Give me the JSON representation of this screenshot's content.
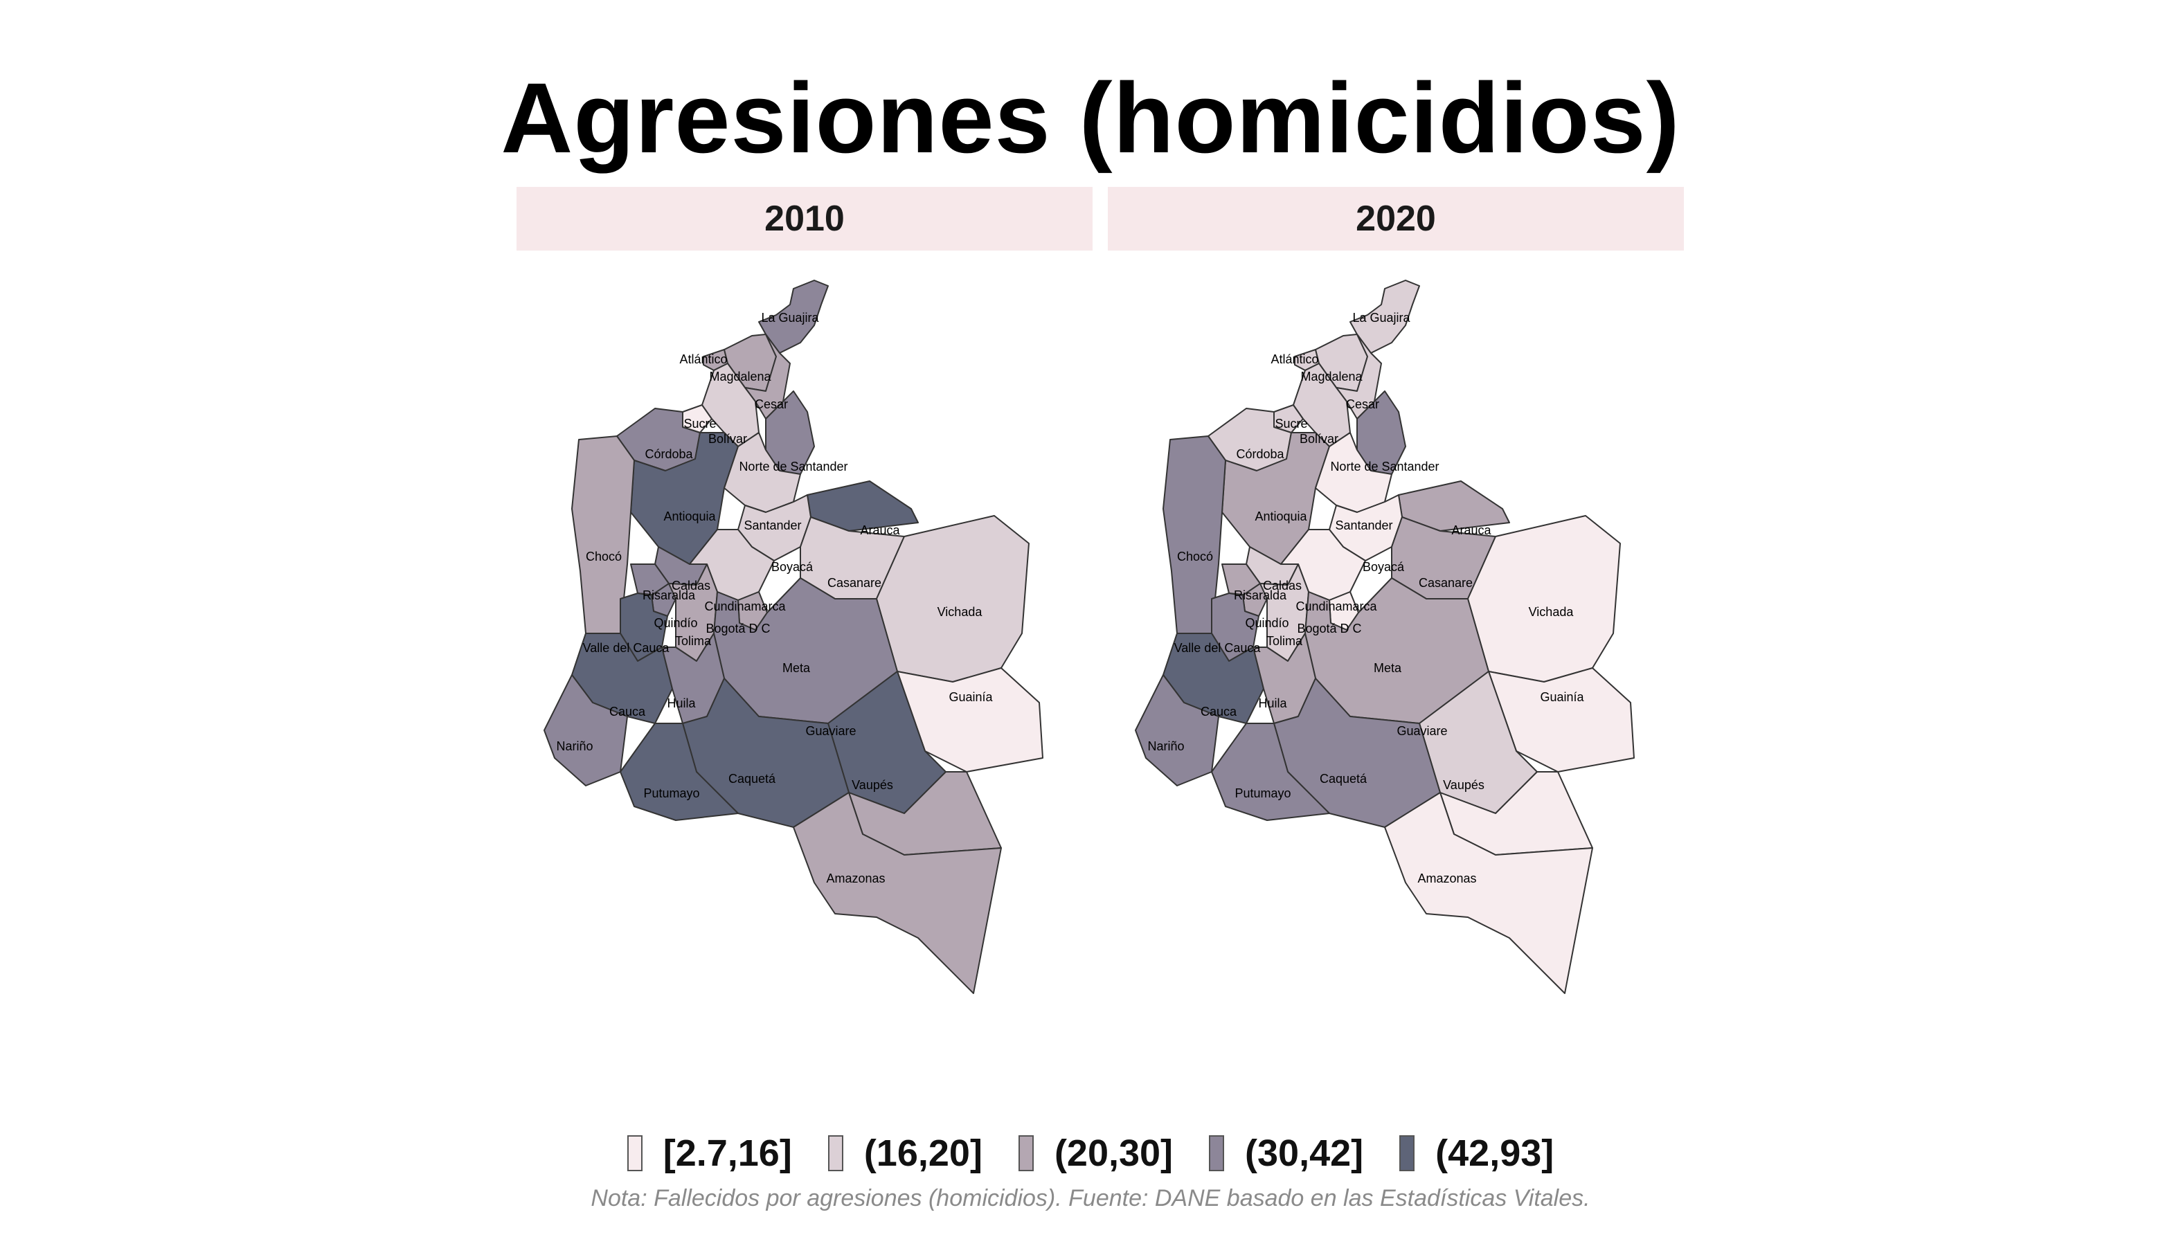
{
  "title": "Agresiones (homicidios)",
  "panels": [
    {
      "label": "2010",
      "colors": {
        "La Guajira": 4,
        "Atlántico": 3,
        "Magdalena": 3,
        "Cesar": 3,
        "Sucre": 1,
        "Bolívar": 2,
        "Córdoba": 4,
        "Norte de Santander": 4,
        "Antioquia": 5,
        "Santander": 2,
        "Arauca": 5,
        "Chocó": 3,
        "Boyacá": 2,
        "Casanare": 2,
        "Vichada": 2,
        "Caldas": 4,
        "Risaralda": 4,
        "Cundinamarca": 2,
        "Quindío": 4,
        "Bogotá D C": 3,
        "Tolima": 3,
        "Valle del Cauca": 5,
        "Meta": 4,
        "Guainía": 1,
        "Cauca": 5,
        "Huila": 4,
        "Guaviare": 5,
        "Nariño": 4,
        "Caquetá": 5,
        "Putumayo": 5,
        "Vaupés": 3,
        "Amazonas": 3
      }
    },
    {
      "label": "2020",
      "colors": {
        "La Guajira": 2,
        "Atlántico": 2,
        "Magdalena": 2,
        "Cesar": 2,
        "Sucre": 2,
        "Bolívar": 2,
        "Córdoba": 2,
        "Norte de Santander": 4,
        "Antioquia": 3,
        "Santander": 1,
        "Arauca": 3,
        "Chocó": 4,
        "Boyacá": 1,
        "Casanare": 3,
        "Vichada": 1,
        "Caldas": 2,
        "Risaralda": 3,
        "Cundinamarca": 1,
        "Quindío": 3,
        "Bogotá D C": 1,
        "Tolima": 2,
        "Valle del Cauca": 4,
        "Meta": 3,
        "Guainía": 1,
        "Cauca": 5,
        "Huila": 3,
        "Guaviare": 2,
        "Nariño": 4,
        "Caquetá": 4,
        "Putumayo": 4,
        "Vaupés": 1,
        "Amazonas": 1
      }
    }
  ],
  "legend": [
    {
      "label": "[2.7,16]",
      "color": "#f7ecee"
    },
    {
      "label": "(16,20]",
      "color": "#dcd0d6"
    },
    {
      "label": "(20,30]",
      "color": "#b4a7b2"
    },
    {
      "label": "(30,42]",
      "color": "#8d8699"
    },
    {
      "label": "(42,93]",
      "color": "#5e6478"
    }
  ],
  "caption": "Nota: Fallecidos por agresiones (homicidios). Fuente: DANE basado en las Estadísticas Vitales."
}
